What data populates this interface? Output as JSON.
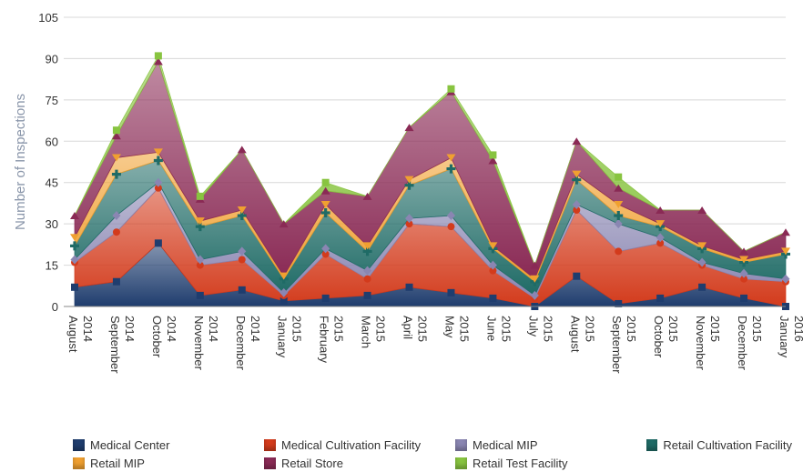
{
  "chart_data": {
    "type": "area",
    "stacked": true,
    "ylabel": "Number of Inspections",
    "ylim": [
      0,
      105
    ],
    "yticks": [
      0,
      15,
      30,
      45,
      60,
      75,
      90,
      105
    ],
    "grid": true,
    "legend_position": "bottom",
    "categories": [
      {
        "month": "August",
        "year": "2014"
      },
      {
        "month": "September",
        "year": "2014"
      },
      {
        "month": "October",
        "year": "2014"
      },
      {
        "month": "November",
        "year": "2014"
      },
      {
        "month": "December",
        "year": "2014"
      },
      {
        "month": "January",
        "year": "2015"
      },
      {
        "month": "February",
        "year": "2015"
      },
      {
        "month": "March",
        "year": "2015"
      },
      {
        "month": "April",
        "year": "2015"
      },
      {
        "month": "May",
        "year": "2015"
      },
      {
        "month": "June",
        "year": "2015"
      },
      {
        "month": "July",
        "year": "2015"
      },
      {
        "month": "August",
        "year": "2015"
      },
      {
        "month": "September",
        "year": "2015"
      },
      {
        "month": "October",
        "year": "2015"
      },
      {
        "month": "November",
        "year": "2015"
      },
      {
        "month": "December",
        "year": "2015"
      },
      {
        "month": "January",
        "year": "2016"
      }
    ],
    "series": [
      {
        "name": "Medical Center",
        "color": "#1f3d6e",
        "values": [
          7,
          9,
          23,
          4,
          6,
          2,
          3,
          4,
          7,
          5,
          3,
          0,
          11,
          1,
          3,
          7,
          3,
          0
        ]
      },
      {
        "name": "Medical Cultivation Facility",
        "color": "#d33b1c",
        "values": [
          9,
          18,
          20,
          11,
          11,
          2,
          16,
          6,
          23,
          24,
          10,
          3,
          24,
          19,
          20,
          8,
          7,
          9
        ]
      },
      {
        "name": "Medical MIP",
        "color": "#8a86b2",
        "values": [
          1,
          6,
          2,
          2,
          3,
          1,
          2,
          3,
          2,
          4,
          2,
          1,
          2,
          10,
          2,
          1,
          2,
          1
        ]
      },
      {
        "name": "Retail Cultivation Facility",
        "color": "#1f6b66",
        "values": [
          5,
          15,
          8,
          12,
          13,
          5,
          13,
          7,
          12,
          17,
          6,
          5,
          9,
          3,
          4,
          5,
          4,
          9
        ]
      },
      {
        "name": "Retail MIP",
        "color": "#f0a030",
        "values": [
          3,
          6,
          3,
          2,
          2,
          1,
          3,
          2,
          2,
          4,
          1,
          1,
          2,
          4,
          1,
          1,
          1,
          1
        ]
      },
      {
        "name": "Retail Store",
        "color": "#8a2a55",
        "values": [
          8,
          8,
          33,
          8,
          22,
          19,
          5,
          18,
          19,
          24,
          31,
          5,
          12,
          6,
          5,
          13,
          3,
          7
        ]
      },
      {
        "name": "Retail Test Facility",
        "color": "#88c440",
        "values": [
          0,
          2,
          2,
          1,
          0,
          0,
          3,
          0,
          0,
          1,
          2,
          0,
          0,
          4,
          0,
          0,
          0,
          0
        ]
      }
    ]
  }
}
